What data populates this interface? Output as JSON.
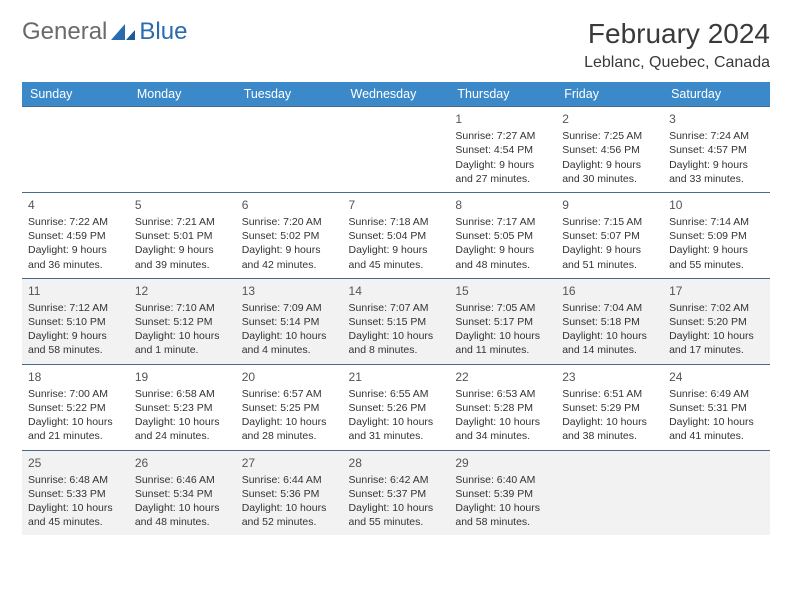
{
  "brand": {
    "word1": "General",
    "word2": "Blue"
  },
  "title": "February 2024",
  "location": "Leblanc, Quebec, Canada",
  "colors": {
    "header_bg": "#3b89c9",
    "row_border": "#4a6a8a",
    "alt_row_bg": "#f2f2f2",
    "text": "#333333"
  },
  "fonts": {
    "title_size": 28,
    "location_size": 16,
    "dayhead_size": 12.5,
    "cell_size": 10.5
  },
  "day_headers": [
    "Sunday",
    "Monday",
    "Tuesday",
    "Wednesday",
    "Thursday",
    "Friday",
    "Saturday"
  ],
  "calendar_type": "monthly_table",
  "weeks": [
    [
      null,
      null,
      null,
      null,
      {
        "n": "1",
        "sr": "Sunrise: 7:27 AM",
        "ss": "Sunset: 4:54 PM",
        "dl": "Daylight: 9 hours and 27 minutes."
      },
      {
        "n": "2",
        "sr": "Sunrise: 7:25 AM",
        "ss": "Sunset: 4:56 PM",
        "dl": "Daylight: 9 hours and 30 minutes."
      },
      {
        "n": "3",
        "sr": "Sunrise: 7:24 AM",
        "ss": "Sunset: 4:57 PM",
        "dl": "Daylight: 9 hours and 33 minutes."
      }
    ],
    [
      {
        "n": "4",
        "sr": "Sunrise: 7:22 AM",
        "ss": "Sunset: 4:59 PM",
        "dl": "Daylight: 9 hours and 36 minutes."
      },
      {
        "n": "5",
        "sr": "Sunrise: 7:21 AM",
        "ss": "Sunset: 5:01 PM",
        "dl": "Daylight: 9 hours and 39 minutes."
      },
      {
        "n": "6",
        "sr": "Sunrise: 7:20 AM",
        "ss": "Sunset: 5:02 PM",
        "dl": "Daylight: 9 hours and 42 minutes."
      },
      {
        "n": "7",
        "sr": "Sunrise: 7:18 AM",
        "ss": "Sunset: 5:04 PM",
        "dl": "Daylight: 9 hours and 45 minutes."
      },
      {
        "n": "8",
        "sr": "Sunrise: 7:17 AM",
        "ss": "Sunset: 5:05 PM",
        "dl": "Daylight: 9 hours and 48 minutes."
      },
      {
        "n": "9",
        "sr": "Sunrise: 7:15 AM",
        "ss": "Sunset: 5:07 PM",
        "dl": "Daylight: 9 hours and 51 minutes."
      },
      {
        "n": "10",
        "sr": "Sunrise: 7:14 AM",
        "ss": "Sunset: 5:09 PM",
        "dl": "Daylight: 9 hours and 55 minutes."
      }
    ],
    [
      {
        "n": "11",
        "sr": "Sunrise: 7:12 AM",
        "ss": "Sunset: 5:10 PM",
        "dl": "Daylight: 9 hours and 58 minutes."
      },
      {
        "n": "12",
        "sr": "Sunrise: 7:10 AM",
        "ss": "Sunset: 5:12 PM",
        "dl": "Daylight: 10 hours and 1 minute."
      },
      {
        "n": "13",
        "sr": "Sunrise: 7:09 AM",
        "ss": "Sunset: 5:14 PM",
        "dl": "Daylight: 10 hours and 4 minutes."
      },
      {
        "n": "14",
        "sr": "Sunrise: 7:07 AM",
        "ss": "Sunset: 5:15 PM",
        "dl": "Daylight: 10 hours and 8 minutes."
      },
      {
        "n": "15",
        "sr": "Sunrise: 7:05 AM",
        "ss": "Sunset: 5:17 PM",
        "dl": "Daylight: 10 hours and 11 minutes."
      },
      {
        "n": "16",
        "sr": "Sunrise: 7:04 AM",
        "ss": "Sunset: 5:18 PM",
        "dl": "Daylight: 10 hours and 14 minutes."
      },
      {
        "n": "17",
        "sr": "Sunrise: 7:02 AM",
        "ss": "Sunset: 5:20 PM",
        "dl": "Daylight: 10 hours and 17 minutes."
      }
    ],
    [
      {
        "n": "18",
        "sr": "Sunrise: 7:00 AM",
        "ss": "Sunset: 5:22 PM",
        "dl": "Daylight: 10 hours and 21 minutes."
      },
      {
        "n": "19",
        "sr": "Sunrise: 6:58 AM",
        "ss": "Sunset: 5:23 PM",
        "dl": "Daylight: 10 hours and 24 minutes."
      },
      {
        "n": "20",
        "sr": "Sunrise: 6:57 AM",
        "ss": "Sunset: 5:25 PM",
        "dl": "Daylight: 10 hours and 28 minutes."
      },
      {
        "n": "21",
        "sr": "Sunrise: 6:55 AM",
        "ss": "Sunset: 5:26 PM",
        "dl": "Daylight: 10 hours and 31 minutes."
      },
      {
        "n": "22",
        "sr": "Sunrise: 6:53 AM",
        "ss": "Sunset: 5:28 PM",
        "dl": "Daylight: 10 hours and 34 minutes."
      },
      {
        "n": "23",
        "sr": "Sunrise: 6:51 AM",
        "ss": "Sunset: 5:29 PM",
        "dl": "Daylight: 10 hours and 38 minutes."
      },
      {
        "n": "24",
        "sr": "Sunrise: 6:49 AM",
        "ss": "Sunset: 5:31 PM",
        "dl": "Daylight: 10 hours and 41 minutes."
      }
    ],
    [
      {
        "n": "25",
        "sr": "Sunrise: 6:48 AM",
        "ss": "Sunset: 5:33 PM",
        "dl": "Daylight: 10 hours and 45 minutes."
      },
      {
        "n": "26",
        "sr": "Sunrise: 6:46 AM",
        "ss": "Sunset: 5:34 PM",
        "dl": "Daylight: 10 hours and 48 minutes."
      },
      {
        "n": "27",
        "sr": "Sunrise: 6:44 AM",
        "ss": "Sunset: 5:36 PM",
        "dl": "Daylight: 10 hours and 52 minutes."
      },
      {
        "n": "28",
        "sr": "Sunrise: 6:42 AM",
        "ss": "Sunset: 5:37 PM",
        "dl": "Daylight: 10 hours and 55 minutes."
      },
      {
        "n": "29",
        "sr": "Sunrise: 6:40 AM",
        "ss": "Sunset: 5:39 PM",
        "dl": "Daylight: 10 hours and 58 minutes."
      },
      null,
      null
    ]
  ]
}
